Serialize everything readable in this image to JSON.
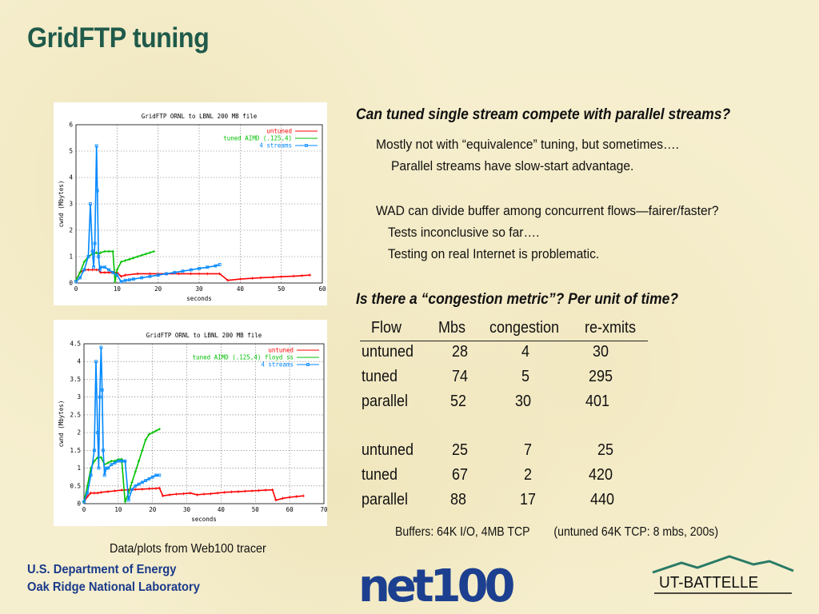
{
  "title": "GridFTP tuning",
  "chart_data": [
    {
      "type": "line",
      "title": "GridFTP ORNL to LBNL 200 MB file",
      "xlabel": "seconds",
      "ylabel": "cwnd (Mbytes)",
      "xlim": [
        0,
        60
      ],
      "ylim": [
        0,
        6
      ],
      "xticks": [
        "0",
        "10",
        "20",
        "30",
        "40",
        "50",
        "60"
      ],
      "yticks": [
        "0",
        "1",
        "2",
        "3",
        "4",
        "5",
        "6"
      ],
      "grid": true,
      "legend_position": "top-right",
      "series": [
        {
          "name": "untuned",
          "color": "#ff0000",
          "marker": "+",
          "x": [
            0,
            1,
            2,
            3,
            4,
            5,
            5.5,
            6,
            7,
            8,
            9,
            10,
            11,
            12,
            15,
            18,
            20,
            22,
            25,
            28,
            30,
            32,
            35,
            37,
            40,
            43,
            45,
            48,
            50,
            53,
            55,
            57
          ],
          "y": [
            0.1,
            0.4,
            0.5,
            0.5,
            0.5,
            0.5,
            0.5,
            0.4,
            0.4,
            0.4,
            0.4,
            0.4,
            0.25,
            0.3,
            0.35,
            0.35,
            0.35,
            0.35,
            0.35,
            0.35,
            0.35,
            0.35,
            0.35,
            0.1,
            0.15,
            0.18,
            0.2,
            0.22,
            0.24,
            0.26,
            0.28,
            0.3
          ]
        },
        {
          "name": "tuned AIMD (.125,4)",
          "color": "#00c000",
          "marker": "+",
          "x": [
            0,
            1,
            2,
            3,
            4,
            5,
            5.5,
            6,
            7,
            8,
            9,
            9.5,
            10,
            11,
            12,
            13,
            14,
            15,
            16,
            17,
            18,
            19
          ],
          "y": [
            0.1,
            0.4,
            0.8,
            1.0,
            1.1,
            1.15,
            1.1,
            1.15,
            1.2,
            1.2,
            1.2,
            0.05,
            0.5,
            0.8,
            0.85,
            0.9,
            0.95,
            1.0,
            1.05,
            1.1,
            1.15,
            1.2
          ]
        },
        {
          "name": "4 streams",
          "color": "#0088ff",
          "marker": "square",
          "x": [
            0,
            1,
            2,
            3,
            3.5,
            4,
            4.3,
            4.6,
            5,
            5.2,
            5.5,
            5.8,
            6,
            7,
            8,
            9,
            10,
            11,
            12,
            13,
            14,
            16,
            18,
            20,
            22,
            24,
            26,
            28,
            30,
            32,
            34,
            35
          ],
          "y": [
            0.05,
            0.2,
            0.5,
            1.0,
            3.0,
            1.2,
            0.6,
            1.5,
            5.2,
            3.5,
            1.0,
            0.5,
            0.6,
            0.6,
            0.5,
            0.4,
            0.3,
            0.05,
            0.1,
            0.12,
            0.15,
            0.2,
            0.25,
            0.3,
            0.35,
            0.4,
            0.45,
            0.5,
            0.55,
            0.6,
            0.65,
            0.7
          ]
        }
      ]
    },
    {
      "type": "line",
      "title": "GridFTP ORNL to LBNL 200 MB file",
      "xlabel": "seconds",
      "ylabel": "cwnd (Mbytes)",
      "xlim": [
        0,
        70
      ],
      "ylim": [
        0,
        4.5
      ],
      "xticks": [
        "0",
        "10",
        "20",
        "30",
        "40",
        "50",
        "60",
        "70"
      ],
      "yticks": [
        "0",
        "0.5",
        "1",
        "1.5",
        "2",
        "2.5",
        "3",
        "3.5",
        "4",
        "4.5"
      ],
      "grid": true,
      "legend_position": "top-right",
      "series": [
        {
          "name": "untuned",
          "color": "#ff0000",
          "marker": "+",
          "x": [
            0,
            1,
            2,
            3,
            4,
            5,
            7,
            9,
            11,
            13,
            15,
            17,
            19,
            21,
            22,
            23,
            25,
            27,
            29,
            31,
            33,
            35,
            37,
            39,
            41,
            43,
            45,
            47,
            49,
            51,
            53,
            55,
            56,
            58,
            60,
            62,
            64
          ],
          "y": [
            0.05,
            0.2,
            0.3,
            0.3,
            0.3,
            0.32,
            0.34,
            0.36,
            0.38,
            0.39,
            0.4,
            0.41,
            0.42,
            0.43,
            0.44,
            0.22,
            0.25,
            0.27,
            0.28,
            0.3,
            0.25,
            0.27,
            0.28,
            0.3,
            0.32,
            0.33,
            0.34,
            0.35,
            0.36,
            0.37,
            0.38,
            0.39,
            0.1,
            0.15,
            0.18,
            0.2,
            0.22
          ]
        },
        {
          "name": "tuned AIMD (.125,4) floyd ss",
          "color": "#00c000",
          "marker": "+",
          "x": [
            0,
            1,
            2,
            3,
            4,
            5,
            6,
            7,
            8,
            9,
            10,
            11,
            12,
            13,
            14,
            15,
            16,
            17,
            18,
            19,
            20,
            21,
            22
          ],
          "y": [
            0.05,
            0.5,
            1.0,
            1.2,
            1.3,
            1.3,
            1.1,
            1.15,
            1.2,
            1.2,
            1.25,
            1.25,
            0.05,
            0.3,
            0.6,
            0.9,
            1.2,
            1.5,
            1.8,
            1.95,
            2.0,
            2.05,
            2.1
          ]
        },
        {
          "name": "4 streams",
          "color": "#0088ff",
          "marker": "square",
          "x": [
            0,
            1,
            2,
            3,
            3.5,
            4,
            4.3,
            4.6,
            5,
            5.3,
            5.6,
            6,
            6.5,
            7,
            8,
            9,
            10,
            11,
            12,
            13,
            14,
            15,
            16,
            17,
            18,
            19,
            20,
            21,
            22
          ],
          "y": [
            0.05,
            0.3,
            0.8,
            1.5,
            4.0,
            2.0,
            1.0,
            3.0,
            4.4,
            3.2,
            1.5,
            0.8,
            1.0,
            1.0,
            1.1,
            1.15,
            1.2,
            1.2,
            1.2,
            0.1,
            0.4,
            0.5,
            0.55,
            0.6,
            0.65,
            0.7,
            0.75,
            0.8,
            0.8
          ]
        }
      ]
    }
  ],
  "caption": "Data/plots from Web100 tracer",
  "question1": {
    "heading": "Can tuned single stream compete with parallel streams?",
    "lines": [
      "Mostly not with “equivalence” tuning, but sometimes….",
      "Parallel streams have slow-start advantage.",
      "WAD can divide buffer among concurrent flows—fairer/faster?",
      "Tests inconclusive so far….",
      "Testing on real Internet is problematic."
    ]
  },
  "question2": {
    "heading": "Is there a “congestion metric”?   Per unit of time?"
  },
  "table": {
    "headers": [
      "Flow",
      "Mbs",
      "congestion",
      "re-xmits"
    ],
    "group1": [
      [
        "untuned",
        "28",
        "4",
        "30"
      ],
      [
        "tuned",
        "74",
        "5",
        "295"
      ],
      [
        "parallel",
        "52",
        "30",
        "401"
      ]
    ],
    "group2": [
      [
        "untuned",
        "25",
        "7",
        "25"
      ],
      [
        "tuned",
        "67",
        "2",
        "420"
      ],
      [
        "parallel",
        "88",
        "17",
        "440"
      ]
    ]
  },
  "buffers": {
    "left": "Buffers: 64K I/O,  4MB TCP",
    "right": "(untuned 64K TCP: 8 mbs, 200s)"
  },
  "footer": {
    "line1": "U.S. Department of Energy",
    "line2": "Oak Ridge National Laboratory"
  },
  "logos": {
    "net100": "net100",
    "ut_battelle": "UT-BATTELLE",
    "net100_color": "#1c3f8f",
    "mountain_color": "#2a7a66"
  }
}
